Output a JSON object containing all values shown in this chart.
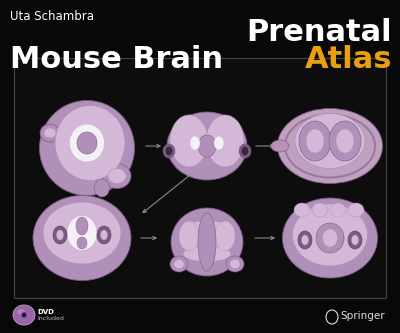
{
  "background_color": "#080808",
  "author_text": "Uta Schambra",
  "author_color": "#ffffff",
  "author_fontsize": 8.5,
  "title1": "Prenatal",
  "title2_white": "Mouse Brain ",
  "title2_orange": "Atlas",
  "title_color_white": "#ffffff",
  "title_color_orange": "#e8a010",
  "title_fontsize": 22,
  "box_facecolor": "#0d0d0d",
  "box_edgecolor": "#444444",
  "arrow_color": "#999999",
  "springer_color": "#dddddd",
  "springer_fontsize": 7.5,
  "dvd_color_disk": "#aa77bb",
  "dvd_text_color": "#bbbbbb",
  "dvd_fontsize": 5.5,
  "brain_purple_light": "#d4b8d8",
  "brain_purple_mid": "#b090b8",
  "brain_purple_dark": "#7a5a82",
  "brain_white": "#f5f0f5",
  "brain_gray": "#c8b0c8"
}
